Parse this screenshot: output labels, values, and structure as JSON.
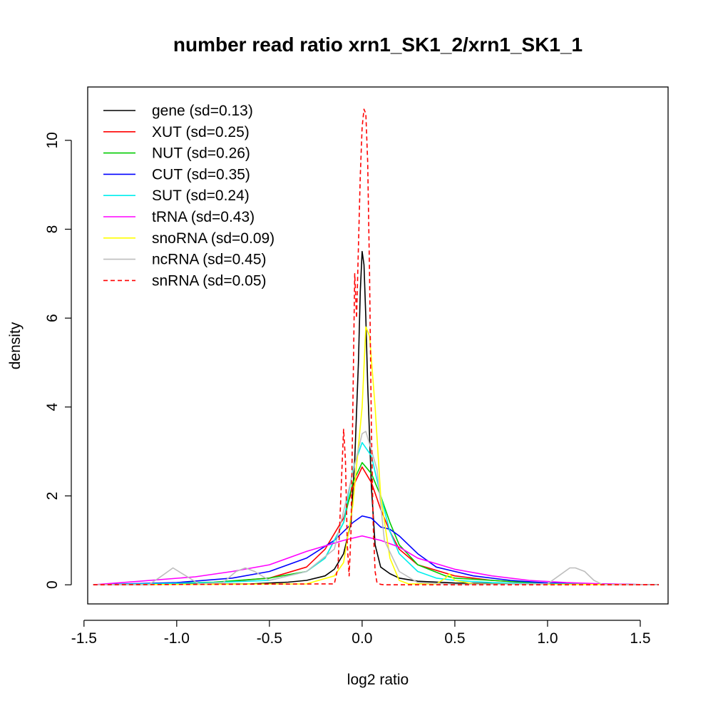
{
  "chart_data": {
    "type": "line",
    "title": "number read ratio xrn1_SK1_2/xrn1_SK1_1",
    "xlabel": "log2 ratio",
    "ylabel": "density",
    "xlim": [
      -1.48,
      1.65
    ],
    "ylim": [
      -0.43,
      11.2
    ],
    "x_ticks": [
      -1.5,
      -1.0,
      -0.5,
      0.0,
      0.5,
      1.0,
      1.5
    ],
    "x_tick_labels": [
      "-1.5",
      "-1.0",
      "-0.5",
      "0.0",
      "0.5",
      "1.0",
      "1.5"
    ],
    "y_ticks": [
      0,
      2,
      4,
      6,
      8,
      10
    ],
    "y_tick_labels": [
      "0",
      "2",
      "4",
      "6",
      "8",
      "10"
    ],
    "grid": false,
    "legend_position": "top-left",
    "series": [
      {
        "name": "gene (sd=0.13)",
        "color": "#000000",
        "dash": "solid",
        "x": [
          -1.45,
          -0.6,
          -0.4,
          -0.3,
          -0.2,
          -0.15,
          -0.1,
          -0.06,
          -0.04,
          -0.02,
          -0.01,
          0.0,
          0.01,
          0.02,
          0.03,
          0.05,
          0.07,
          0.1,
          0.15,
          0.2,
          0.3,
          0.5,
          0.8,
          1.2,
          1.6
        ],
        "y": [
          0,
          0.02,
          0.06,
          0.1,
          0.2,
          0.35,
          0.7,
          1.4,
          2.8,
          5.0,
          6.6,
          7.5,
          7.2,
          6.0,
          4.5,
          2.2,
          0.9,
          0.4,
          0.25,
          0.15,
          0.08,
          0.04,
          0.02,
          0.01,
          0
        ]
      },
      {
        "name": "XUT (sd=0.25)",
        "color": "#ff0000",
        "dash": "solid",
        "x": [
          -1.45,
          -0.8,
          -0.5,
          -0.3,
          -0.2,
          -0.1,
          -0.05,
          0.0,
          0.05,
          0.1,
          0.15,
          0.2,
          0.3,
          0.5,
          0.7,
          1.0,
          1.6
        ],
        "y": [
          0,
          0.05,
          0.15,
          0.4,
          0.8,
          1.5,
          2.2,
          2.65,
          2.3,
          1.7,
          1.2,
          0.8,
          0.45,
          0.2,
          0.1,
          0.02,
          0
        ]
      },
      {
        "name": "NUT (sd=0.26)",
        "color": "#00cc00",
        "dash": "solid",
        "x": [
          -1.45,
          -0.8,
          -0.5,
          -0.3,
          -0.2,
          -0.1,
          -0.05,
          0.0,
          0.05,
          0.1,
          0.15,
          0.2,
          0.3,
          0.45,
          0.5,
          0.7,
          1.0,
          1.6
        ],
        "y": [
          0,
          0.06,
          0.15,
          0.3,
          0.6,
          1.4,
          2.3,
          2.75,
          2.5,
          2.0,
          1.4,
          0.9,
          0.45,
          0.2,
          0.15,
          0.1,
          0.03,
          0
        ]
      },
      {
        "name": "CUT (sd=0.35)",
        "color": "#0000ff",
        "dash": "solid",
        "x": [
          -1.45,
          -1.0,
          -0.7,
          -0.5,
          -0.3,
          -0.15,
          -0.05,
          0.0,
          0.05,
          0.1,
          0.15,
          0.2,
          0.3,
          0.4,
          0.6,
          0.8,
          1.0,
          1.6
        ],
        "y": [
          0,
          0.05,
          0.15,
          0.3,
          0.6,
          1.0,
          1.4,
          1.55,
          1.5,
          1.3,
          1.25,
          1.1,
          0.7,
          0.4,
          0.2,
          0.1,
          0.04,
          0
        ]
      },
      {
        "name": "SUT (sd=0.24)",
        "color": "#00eeee",
        "dash": "solid",
        "x": [
          -1.45,
          -0.8,
          -0.5,
          -0.3,
          -0.2,
          -0.1,
          -0.05,
          0.0,
          0.05,
          0.1,
          0.15,
          0.2,
          0.3,
          0.4,
          0.5,
          0.7,
          1.0,
          1.6
        ],
        "y": [
          0,
          0.05,
          0.1,
          0.3,
          0.6,
          1.4,
          2.6,
          3.2,
          2.9,
          2.0,
          1.2,
          0.7,
          0.3,
          0.15,
          0.1,
          0.05,
          0.02,
          0
        ]
      },
      {
        "name": "tRNA (sd=0.43)",
        "color": "#ff00ff",
        "dash": "solid",
        "x": [
          -1.45,
          -1.2,
          -0.9,
          -0.7,
          -0.5,
          -0.3,
          -0.1,
          0.0,
          0.1,
          0.2,
          0.3,
          0.5,
          0.7,
          0.9,
          1.1,
          1.3,
          1.6
        ],
        "y": [
          0,
          0.08,
          0.18,
          0.3,
          0.45,
          0.75,
          1.0,
          1.1,
          1.0,
          0.85,
          0.6,
          0.35,
          0.2,
          0.1,
          0.05,
          0.02,
          0
        ]
      },
      {
        "name": "snoRNA (sd=0.09)",
        "color": "#ffff00",
        "dash": "solid",
        "x": [
          -1.45,
          -0.3,
          -0.15,
          -0.1,
          -0.05,
          0.0,
          0.02,
          0.04,
          0.07,
          0.1,
          0.15,
          0.2,
          0.25,
          0.4,
          0.45,
          0.47,
          0.5,
          0.6,
          1.6
        ],
        "y": [
          0,
          0.02,
          0.2,
          0.5,
          1.8,
          4.0,
          5.8,
          5.6,
          4.0,
          2.0,
          0.6,
          0.1,
          0.02,
          0.02,
          0.15,
          0.25,
          0.1,
          0.02,
          0
        ]
      },
      {
        "name": "ncRNA (sd=0.45)",
        "color": "#bebebe",
        "dash": "solid",
        "x": [
          -1.45,
          -1.15,
          -1.08,
          -1.02,
          -0.95,
          -0.88,
          -0.75,
          -0.68,
          -0.63,
          -0.58,
          -0.5,
          -0.3,
          -0.15,
          -0.08,
          0.0,
          0.02,
          0.08,
          0.12,
          0.2,
          0.3,
          0.5,
          1.0,
          1.06,
          1.12,
          1.15,
          1.2,
          1.25,
          1.3,
          1.6
        ],
        "y": [
          0,
          0.0,
          0.2,
          0.38,
          0.2,
          0.02,
          0.05,
          0.3,
          0.38,
          0.3,
          0.1,
          0.3,
          0.8,
          2.0,
          3.4,
          3.45,
          2.6,
          1.0,
          0.3,
          0.05,
          0.01,
          0.02,
          0.2,
          0.38,
          0.38,
          0.3,
          0.1,
          0.0,
          0
        ]
      },
      {
        "name": "snRNA (sd=0.05)",
        "color": "#ff0000",
        "dash": "dashed",
        "x": [
          -1.45,
          -0.15,
          -0.13,
          -0.11,
          -0.1,
          -0.09,
          -0.08,
          -0.07,
          -0.06,
          -0.05,
          -0.04,
          -0.03,
          -0.02,
          -0.01,
          0.0,
          0.01,
          0.02,
          0.03,
          0.04,
          0.05,
          0.06,
          0.07,
          0.08,
          0.1,
          0.12,
          1.6
        ],
        "y": [
          0,
          0.02,
          0.4,
          2.5,
          3.5,
          2.8,
          0.9,
          0.2,
          1.2,
          4.0,
          7.0,
          6.0,
          7.6,
          9.2,
          10.3,
          10.7,
          10.6,
          9.5,
          7.0,
          3.5,
          1.3,
          0.3,
          0.05,
          0.01,
          0,
          0
        ]
      }
    ]
  }
}
